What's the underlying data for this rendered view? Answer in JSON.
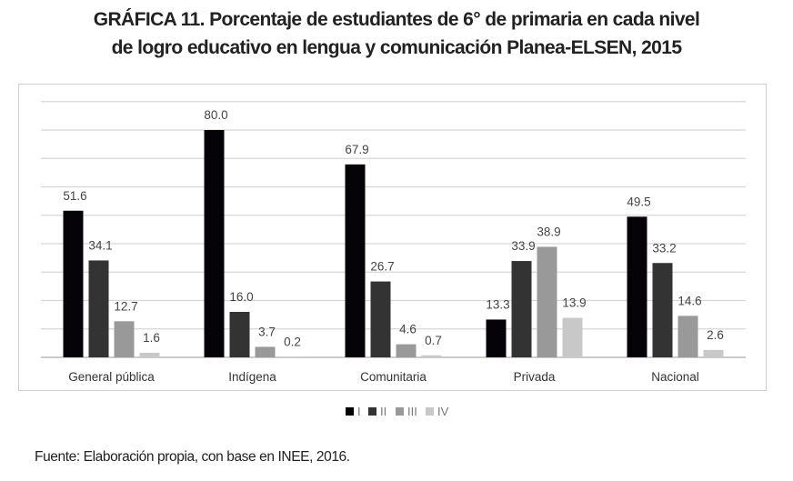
{
  "chart_data": {
    "type": "bar",
    "title_lines": [
      "GRÁFICA 11. Porcentaje de estudiantes de 6° de primaria en cada nivel",
      "de logro educativo en lengua y comunicación Planea-ELSEN, 2015"
    ],
    "categories": [
      "General pública",
      "Indígena",
      "Comunitaria",
      "Privada",
      "Nacional"
    ],
    "series": [
      {
        "name": "I",
        "color": "#050308",
        "values": [
          51.6,
          80.0,
          67.9,
          13.3,
          49.5
        ]
      },
      {
        "name": "II",
        "color": "#333333",
        "values": [
          34.1,
          16.0,
          26.7,
          33.9,
          33.2
        ]
      },
      {
        "name": "III",
        "color": "#999999",
        "values": [
          12.7,
          3.7,
          4.6,
          38.9,
          14.6
        ]
      },
      {
        "name": "IV",
        "color": "#c8c8c8",
        "values": [
          1.6,
          0.2,
          0.7,
          13.9,
          2.6
        ]
      }
    ],
    "ylim": [
      0,
      90
    ],
    "grid": true,
    "y_tick_step": 10,
    "y_tick_labels_shown": false,
    "legend_placement": "bottom",
    "source": "Fuente: Elaboración propia, con base en INEE, 2016."
  }
}
